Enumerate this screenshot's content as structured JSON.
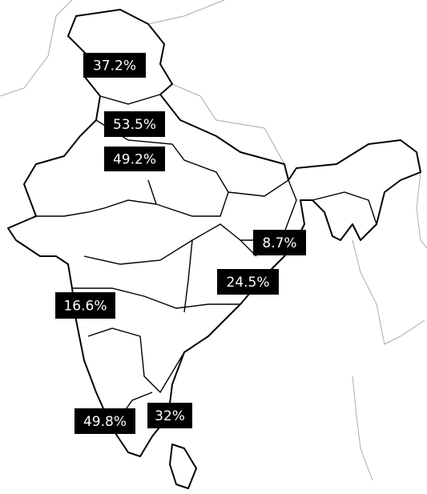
{
  "labels": [
    "37.2%",
    "53.5%",
    "49.2%",
    "8.7%",
    "24.5%",
    "16.6%",
    "49.8%",
    "32%"
  ]
}
